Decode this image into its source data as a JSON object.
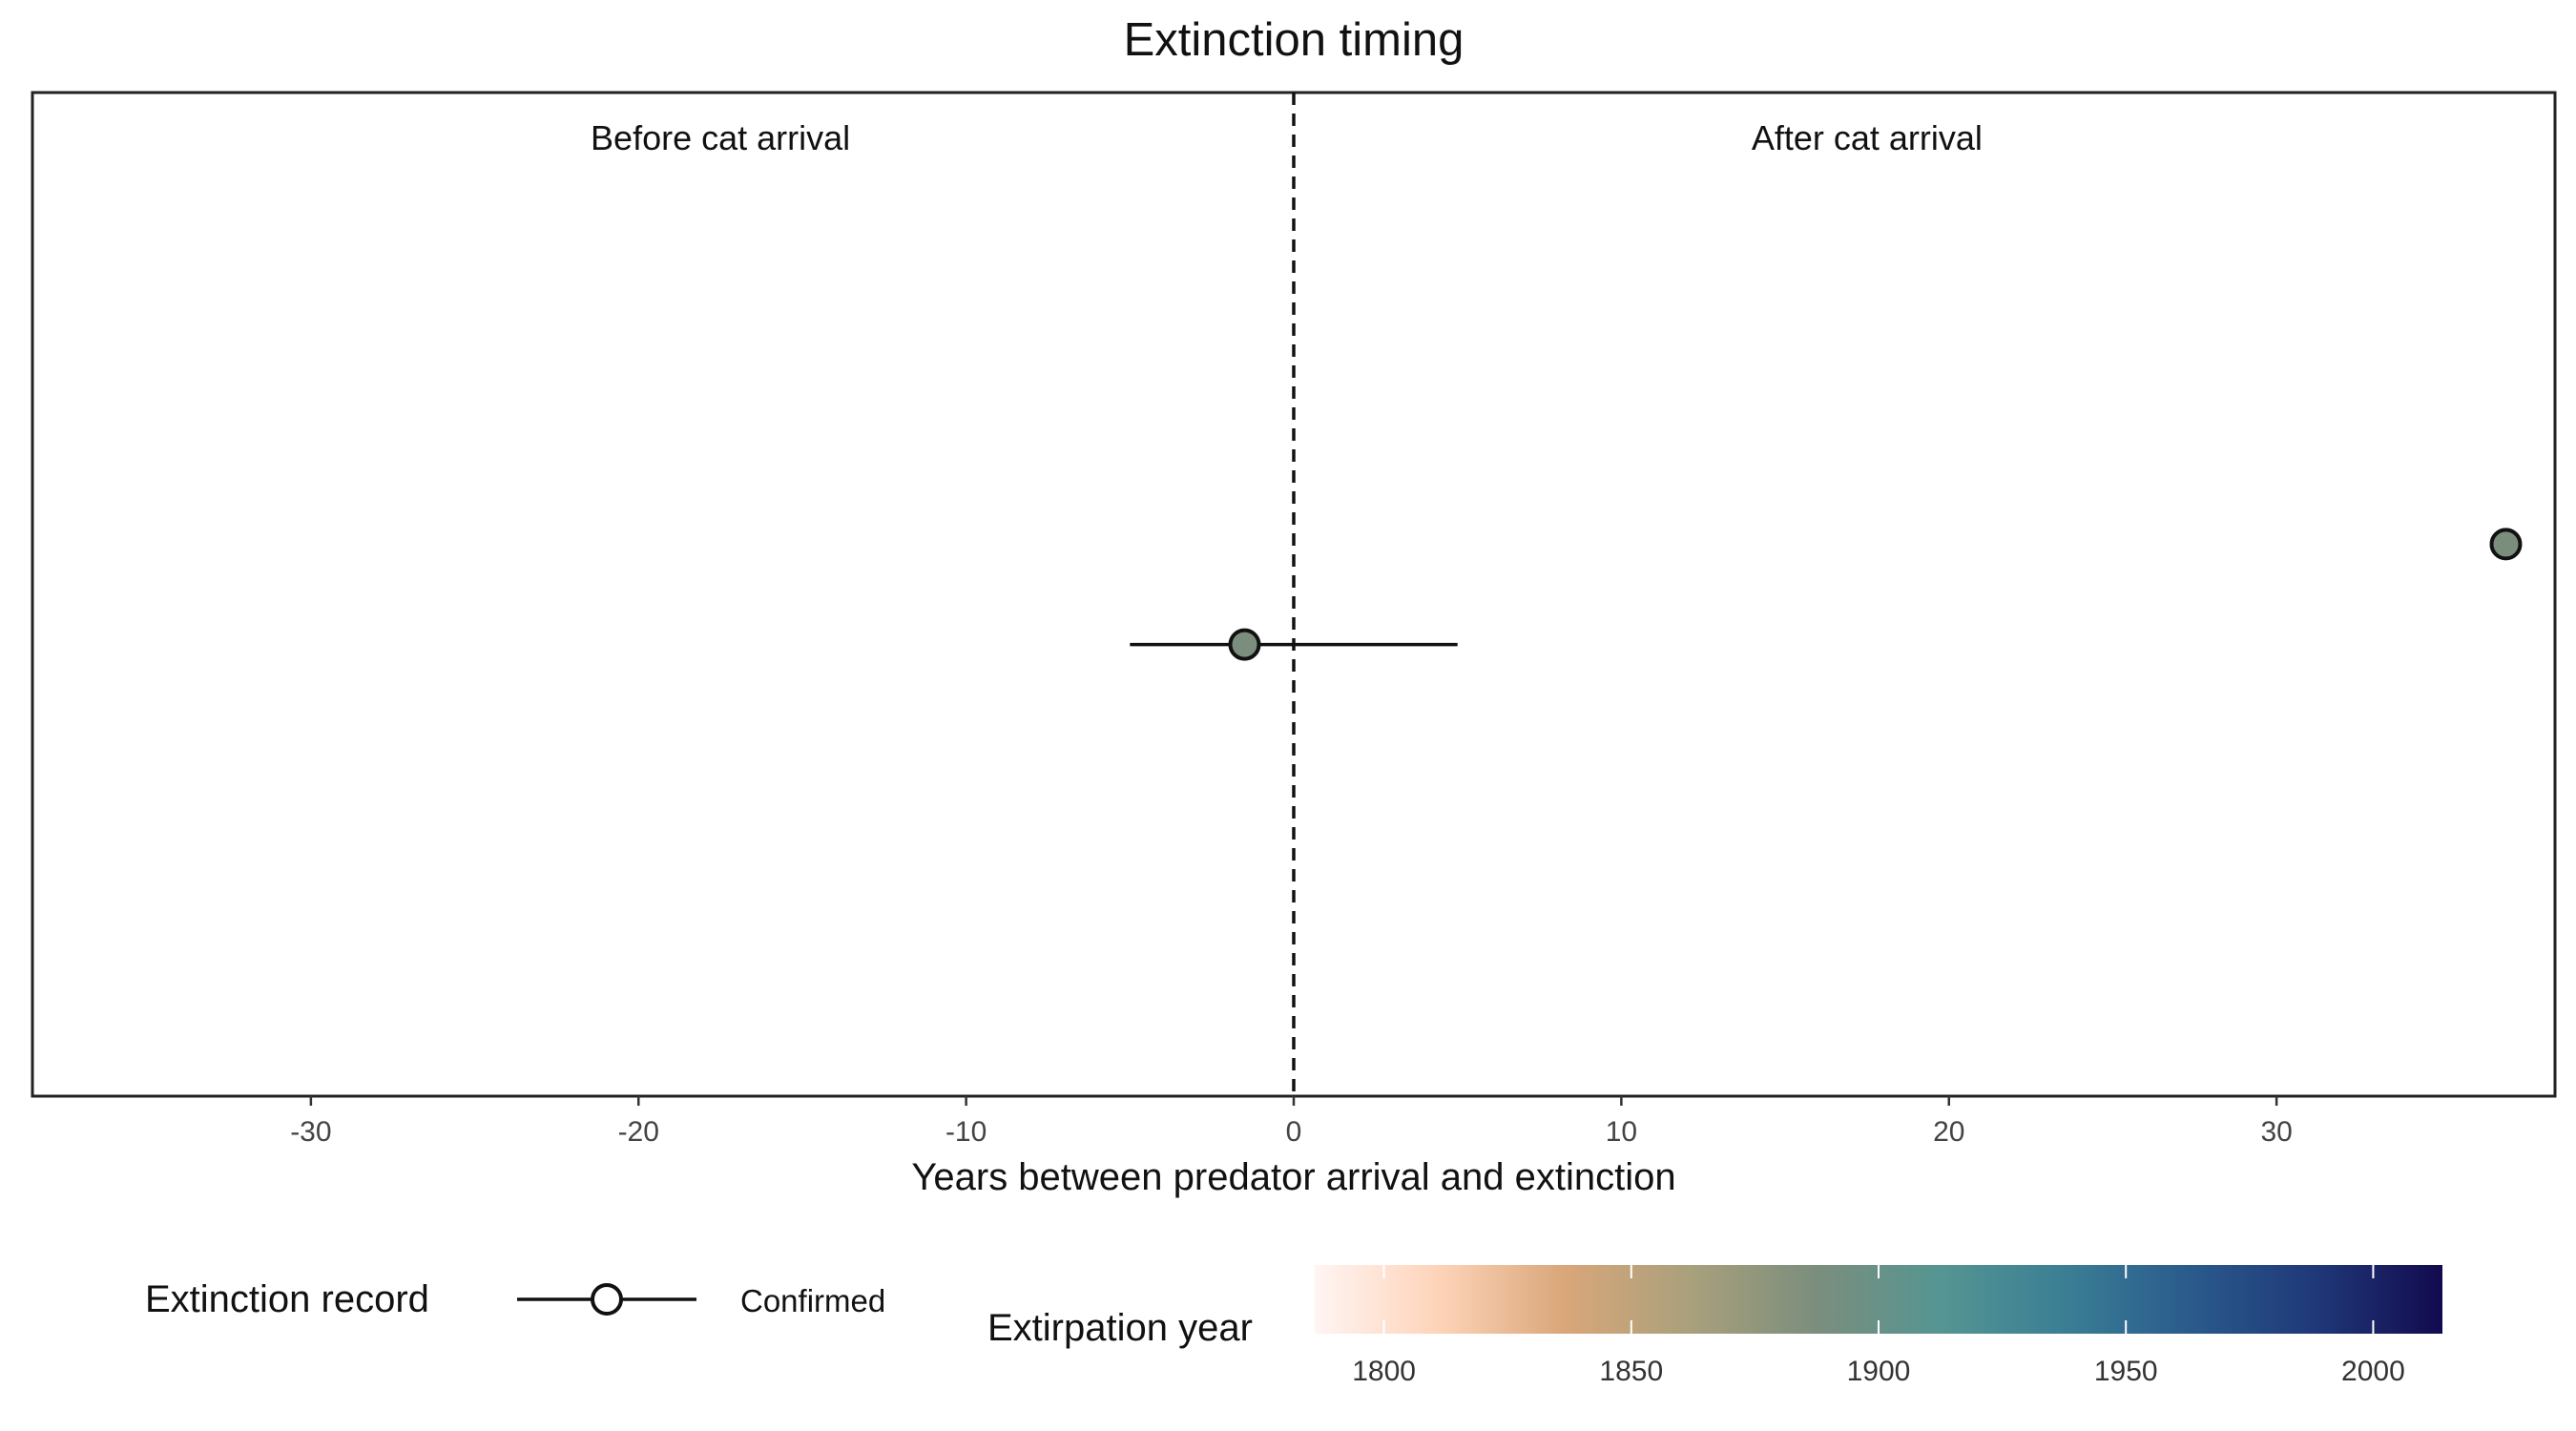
{
  "chart_data": {
    "type": "scatter",
    "title": "Extinction timing",
    "xlabel": "Years between predator arrival and extinction",
    "ylabel": "",
    "xlim": [
      -38.5,
      38.5
    ],
    "x_ticks": [
      -30,
      -20,
      -10,
      0,
      10,
      20,
      30
    ],
    "reference_line": {
      "x": 0,
      "style": "dashed"
    },
    "region_labels": [
      {
        "text": "Before cat arrival",
        "x": -17.5
      },
      {
        "text": "After cat arrival",
        "x": 17.5
      }
    ],
    "points": [
      {
        "x": -1.5,
        "y": -0.05,
        "xmin": -5,
        "xmax": 5,
        "record": "Confirmed",
        "year": 1880
      },
      {
        "x": 37,
        "y": 0.05,
        "record": "Confirmed",
        "year": 1880
      }
    ],
    "ylim": [
      -0.5,
      0.5
    ],
    "grid": false,
    "point_color": "#7b8e7d",
    "legend": {
      "position": "bottom",
      "record_title": "Extinction record",
      "record_items": [
        "Confirmed"
      ],
      "color_title": "Extirpation year",
      "color_ticks": [
        1800,
        1850,
        1900,
        1950,
        2000
      ],
      "color_range": [
        1786,
        2014
      ],
      "color_stops": [
        "#fff5f3",
        "#fdd3b8",
        "#d9a679",
        "#a9a07c",
        "#7b8e7d",
        "#559592",
        "#3a7e94",
        "#2a5a8c",
        "#1f3878",
        "#120a4e"
      ]
    }
  }
}
